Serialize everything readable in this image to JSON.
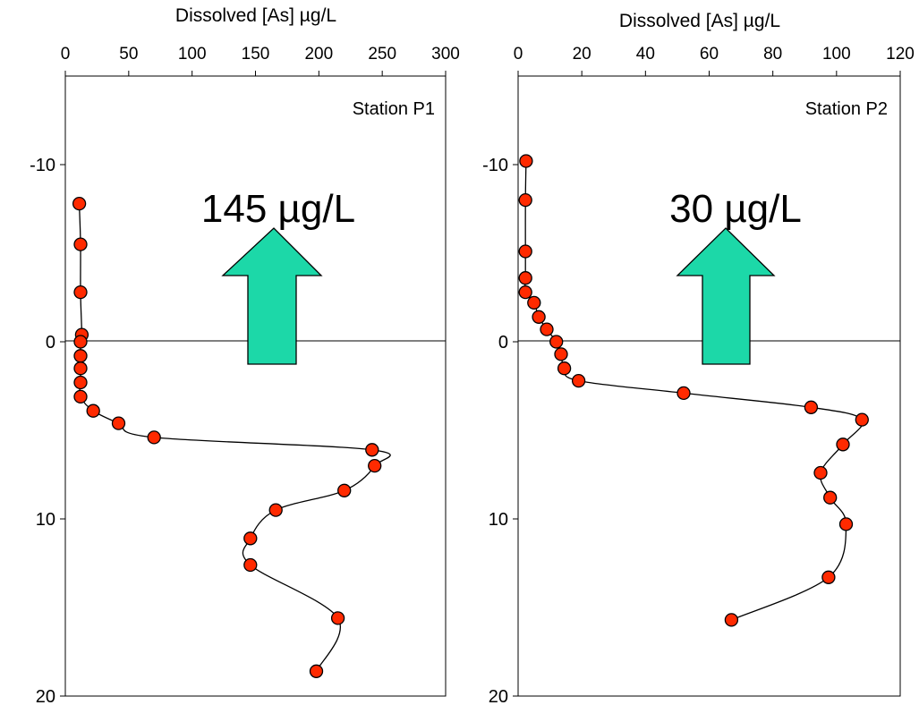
{
  "colors": {
    "marker": "#ff2a00",
    "arrow": "#1cd8a8"
  },
  "chart_data": [
    {
      "type": "line",
      "markers": true,
      "title": "Dissolved [As] µg/L",
      "station": "Station P1",
      "flux_label": "145 µg/L",
      "xlim": [
        0,
        300
      ],
      "xticks": [
        0,
        50,
        100,
        150,
        200,
        250,
        300
      ],
      "ylim": [
        -15,
        20
      ],
      "yticks": [
        -10,
        0,
        10,
        20
      ],
      "y_inverted": true,
      "reference_line_y": 0,
      "points": [
        {
          "x": 11,
          "y": -7.8
        },
        {
          "x": 12,
          "y": -5.5
        },
        {
          "x": 12,
          "y": -2.8
        },
        {
          "x": 13,
          "y": -0.4
        },
        {
          "x": 12,
          "y": 0
        },
        {
          "x": 12,
          "y": 0.8
        },
        {
          "x": 12,
          "y": 1.5
        },
        {
          "x": 12,
          "y": 2.3
        },
        {
          "x": 12,
          "y": 3.1
        },
        {
          "x": 22,
          "y": 3.9
        },
        {
          "x": 42,
          "y": 4.6
        },
        {
          "x": 70,
          "y": 5.4
        },
        {
          "x": 242,
          "y": 6.1
        },
        {
          "x": 244,
          "y": 7
        },
        {
          "x": 220,
          "y": 8.4
        },
        {
          "x": 166,
          "y": 9.5
        },
        {
          "x": 146,
          "y": 11.1
        },
        {
          "x": 146,
          "y": 12.6
        },
        {
          "x": 215,
          "y": 15.6
        },
        {
          "x": 198,
          "y": 18.6
        }
      ]
    },
    {
      "type": "line",
      "markers": true,
      "title": "Dissolved [As] µg/L",
      "station": "Station P2",
      "flux_label": "30 µg/L",
      "xlim": [
        0,
        120
      ],
      "xticks": [
        0,
        20,
        40,
        60,
        80,
        100,
        120
      ],
      "ylim": [
        -15,
        20
      ],
      "yticks": [
        -10,
        0,
        10,
        20
      ],
      "y_inverted": true,
      "reference_line_y": 0,
      "points": [
        {
          "x": 2.5,
          "y": -10.2
        },
        {
          "x": 2.3,
          "y": -8
        },
        {
          "x": 2.3,
          "y": -5.1
        },
        {
          "x": 2.3,
          "y": -3.6
        },
        {
          "x": 2.3,
          "y": -2.8
        },
        {
          "x": 5,
          "y": -2.2
        },
        {
          "x": 6.5,
          "y": -1.4
        },
        {
          "x": 9,
          "y": -0.7
        },
        {
          "x": 12,
          "y": 0
        },
        {
          "x": 13.5,
          "y": 0.7
        },
        {
          "x": 14.5,
          "y": 1.5
        },
        {
          "x": 19,
          "y": 2.2
        },
        {
          "x": 52,
          "y": 2.9
        },
        {
          "x": 92,
          "y": 3.7
        },
        {
          "x": 108,
          "y": 4.4
        },
        {
          "x": 102,
          "y": 5.8
        },
        {
          "x": 95,
          "y": 7.4
        },
        {
          "x": 98,
          "y": 8.8
        },
        {
          "x": 103,
          "y": 10.3
        },
        {
          "x": 97.5,
          "y": 13.3
        },
        {
          "x": 67,
          "y": 15.7
        }
      ]
    }
  ]
}
